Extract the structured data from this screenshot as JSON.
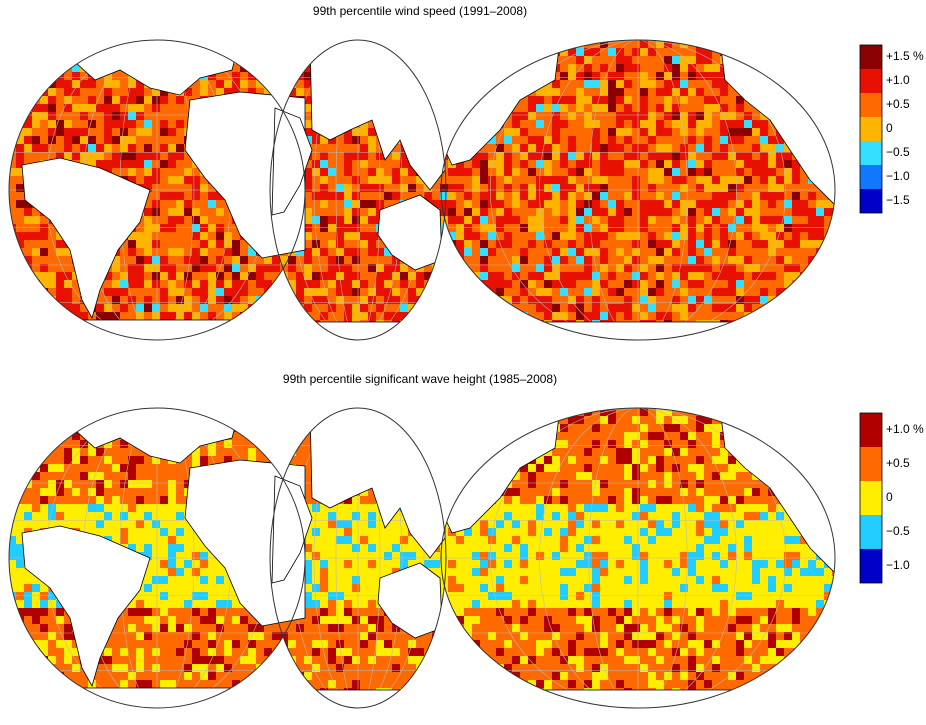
{
  "maps": [
    {
      "title": "99th percentile wind speed (1991–2008)",
      "colorbar": {
        "colors": [
          "#8b0000",
          "#e81000",
          "#ff6a00",
          "#ffb400",
          "#33e0ff",
          "#1177ff",
          "#0000c8"
        ],
        "labels": [
          "+1.5 %",
          "+1.0",
          "+0.5",
          "0",
          "−0.5",
          "−1.0",
          "−1.5"
        ]
      }
    },
    {
      "title": "99th percentile significant wave height (1985–2008)",
      "colorbar": {
        "colors": [
          "#b00000",
          "#ff6a00",
          "#ffee00",
          "#22ccff",
          "#0000c8"
        ],
        "labels": [
          "+1.0 %",
          "+0.5",
          "0",
          "−0.5",
          "−1.0"
        ]
      }
    }
  ]
}
